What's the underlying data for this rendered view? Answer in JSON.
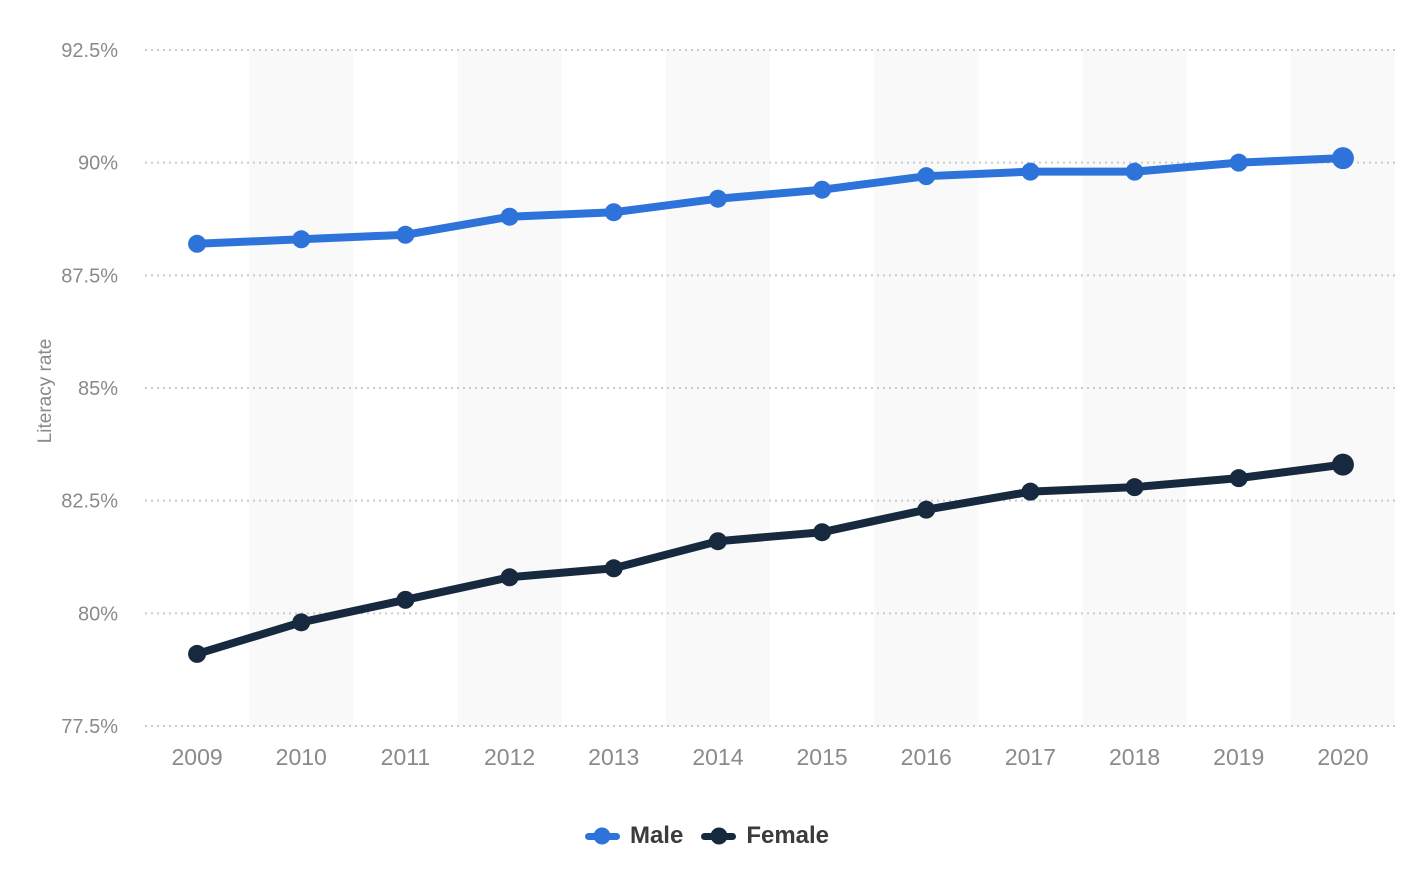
{
  "chart_data": {
    "type": "line",
    "ylabel": "Literacy rate",
    "categories": [
      "2009",
      "2010",
      "2011",
      "2012",
      "2013",
      "2014",
      "2015",
      "2016",
      "2017",
      "2018",
      "2019",
      "2020"
    ],
    "series": [
      {
        "name": "Male",
        "color": "#2d73d9",
        "values": [
          88.2,
          88.3,
          88.4,
          88.8,
          88.9,
          89.2,
          89.4,
          89.7,
          89.8,
          89.8,
          90.0,
          90.1
        ]
      },
      {
        "name": "Female",
        "color": "#16293f",
        "values": [
          79.1,
          79.8,
          80.3,
          80.8,
          81.0,
          81.6,
          81.8,
          82.3,
          82.7,
          82.8,
          83.0,
          83.3
        ]
      }
    ],
    "ylim": [
      77.5,
      92.5
    ],
    "yticks": [
      {
        "value": 92.5,
        "label": "92.5%"
      },
      {
        "value": 90,
        "label": "90%"
      },
      {
        "value": 87.5,
        "label": "87.5%"
      },
      {
        "value": 85,
        "label": "85%"
      },
      {
        "value": 82.5,
        "label": "82.5%"
      },
      {
        "value": 80,
        "label": "80%"
      },
      {
        "value": 77.5,
        "label": "77.5%"
      }
    ],
    "grid": "horizontal-dotted",
    "grid_color": "#c9c9c9",
    "band_color": "#f9f9f9",
    "axis_text_color": "#8a8a8a",
    "legend_position": "bottom",
    "legend": [
      "Male",
      "Female"
    ]
  }
}
